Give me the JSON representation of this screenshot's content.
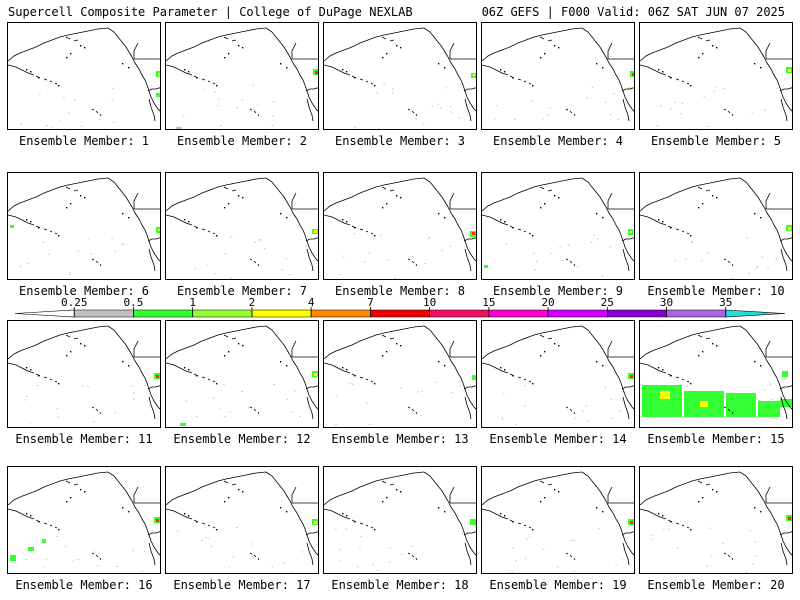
{
  "header": {
    "title": "Supercell Composite Parameter | College of DuPage NEXLAB",
    "run_info": "06Z GEFS | F000 Valid: 06Z SAT JUN 07 2025"
  },
  "member_label_prefix": "Ensemble Member: ",
  "members": [
    "1",
    "2",
    "3",
    "4",
    "5",
    "6",
    "7",
    "8",
    "9",
    "10",
    "11",
    "12",
    "13",
    "14",
    "15",
    "16",
    "17",
    "18",
    "19",
    "20"
  ],
  "colorbar": {
    "ticks": [
      "0.25",
      "0.5",
      "1",
      "2",
      "4",
      "7",
      "10",
      "15",
      "20",
      "25",
      "30",
      "35"
    ],
    "colors": [
      "#ffffff",
      "#c0c0c0",
      "#33ff33",
      "#99ff33",
      "#ffff00",
      "#ff8800",
      "#ee0000",
      "#ee1166",
      "#ff00cc",
      "#cc00ff",
      "#8800cc",
      "#aa66dd",
      "#22dddd"
    ]
  },
  "highlight_colors": {
    "scp_high": "#ff3300",
    "scp_mid": "#ffff00",
    "scp_low": "#33ff33",
    "scp_trace": "#c0c0c0"
  }
}
